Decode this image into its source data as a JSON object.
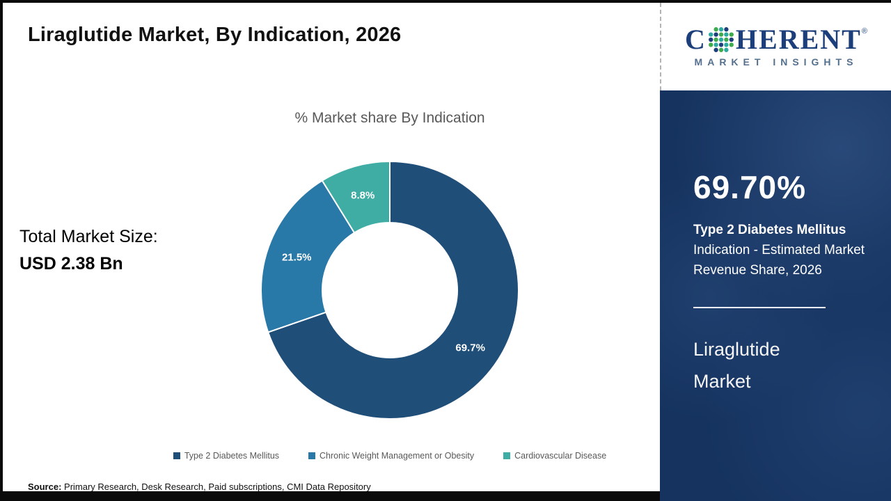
{
  "page": {
    "title": "Liraglutide Market, By Indication, 2026",
    "source_label": "Source:",
    "source_text": "Primary Research, Desk Research, Paid subscriptions, CMI Data Repository"
  },
  "total_market": {
    "label": "Total Market Size:",
    "value": "USD 2.38 Bn"
  },
  "chart_data": {
    "type": "pie",
    "donut": true,
    "title": "% Market share By Indication",
    "categories": [
      "Type 2 Diabetes Mellitus",
      "Chronic Weight Management or Obesity",
      "Cardiovascular Disease"
    ],
    "values": [
      69.7,
      21.5,
      8.8
    ],
    "labels": [
      "69.7%",
      "21.5%",
      "8.8%"
    ],
    "colors": [
      "#1f4e79",
      "#2878a8",
      "#3fada4"
    ],
    "legend_position": "bottom",
    "start_angle_deg": 0
  },
  "logo": {
    "brand_c": "C",
    "brand_rest": "HERENT",
    "registered_mark": "®",
    "subtitle": "MARKET INSIGHTS"
  },
  "sidebar": {
    "stat_value": "69.70%",
    "stat_bold": "Type 2 Diabetes Mellitus",
    "stat_rest": "Indication - Estimated Market Revenue Share, 2026",
    "product_name": "Liraglutide Market",
    "panel_color": "#16335f"
  }
}
